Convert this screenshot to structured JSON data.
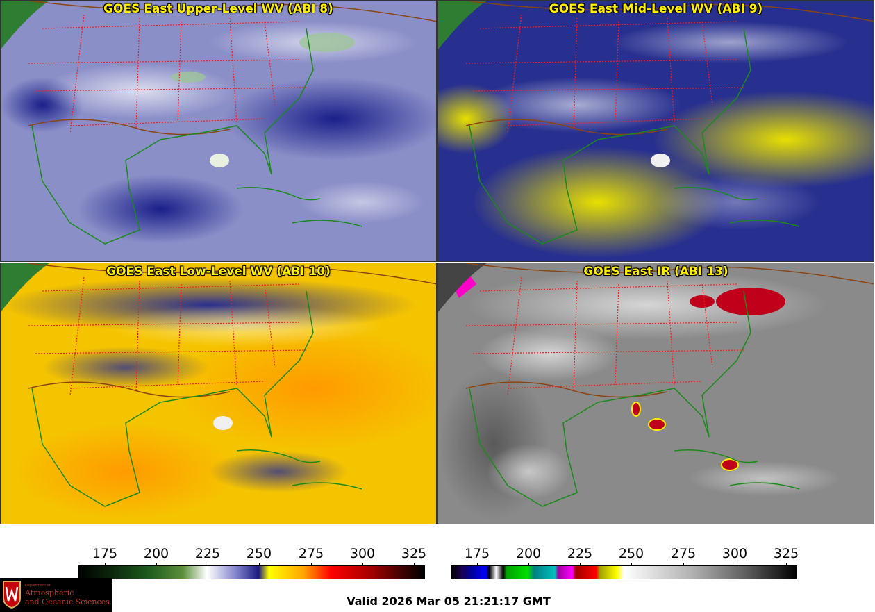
{
  "panels": {
    "upper": {
      "title": "GOES East Upper-Level WV (ABI 8)"
    },
    "mid": {
      "title": "GOES East Mid-Level WV (ABI 9)"
    },
    "low": {
      "title": "GOES East Low-Level WV (ABI 10)"
    },
    "ir": {
      "title": "GOES East IR (ABI 13)"
    }
  },
  "colorbars": {
    "wv": {
      "ticks": [
        "175",
        "200",
        "225",
        "250",
        "275",
        "300",
        "325"
      ]
    },
    "ir": {
      "ticks": [
        "175",
        "200",
        "225",
        "250",
        "275",
        "300",
        "325"
      ]
    }
  },
  "footer": {
    "valid_text": "Valid 2026 Mar 05 21:21:17 GMT"
  },
  "logo": {
    "dept": "Department of",
    "line1": "Atmospheric",
    "line2": "and Oceanic Sciences"
  },
  "colors": {
    "title": "#ffee00",
    "state_borders": "#ff0000",
    "country_borders": "#8b4513",
    "coastline": "#1a8a1a"
  }
}
